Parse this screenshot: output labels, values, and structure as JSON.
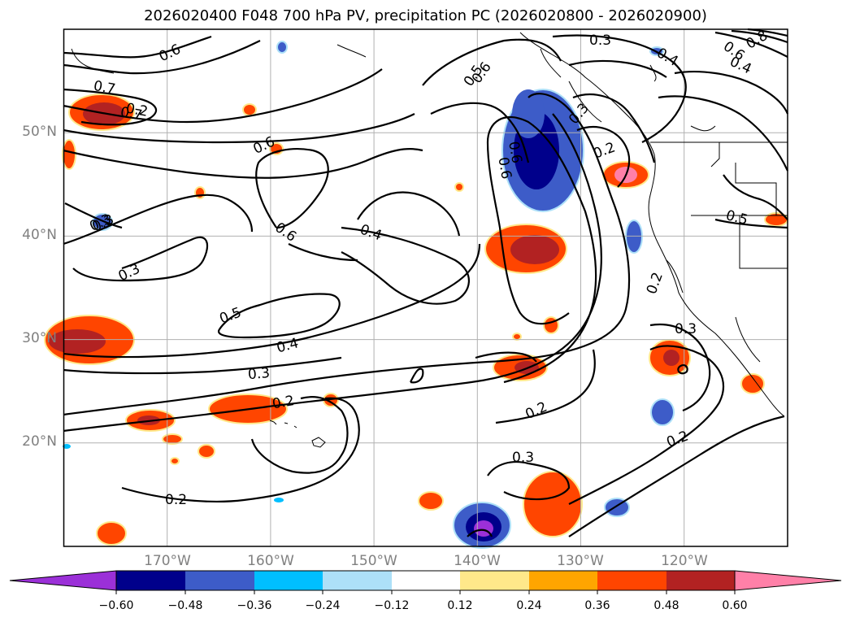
{
  "title": "2026020400 F048 700 hPa PV, precipitation PC (2026020800 - 2026020900)",
  "map": {
    "extent_lon": [
      -180,
      -110
    ],
    "extent_lat": [
      10,
      60
    ],
    "lat_labels": [
      "20°N",
      "30°N",
      "40°N",
      "50°N"
    ],
    "lon_labels": [
      "170°W",
      "160°W",
      "150°W",
      "140°W",
      "130°W",
      "120°W"
    ]
  },
  "colorbar": {
    "colors": [
      "#9b30d8",
      "#00008b",
      "#3d5cc8",
      "#00bfff",
      "#ade0f8",
      "#ffffff",
      "#ffe88a",
      "#ffa500",
      "#ff4500",
      "#b22222",
      "#ff80a8"
    ],
    "tick_labels": [
      "−0.60",
      "−0.48",
      "−0.36",
      "−0.24",
      "−0.12",
      "0.12",
      "0.24",
      "0.36",
      "0.48",
      "0.60"
    ]
  },
  "contour_labels": [
    "0.6",
    "0.7",
    "0.7",
    "0.6",
    "0.6",
    "0.3",
    "0.3",
    "0.5",
    "0.4",
    "0.3",
    "0.2",
    "0.4",
    "0.5",
    "0.3",
    "0.6",
    "0.3",
    "0.2",
    "0.3",
    "0.2",
    "0.4",
    "0.8",
    "0.6",
    "0.4",
    "0.5",
    "0.2",
    "0.3",
    "0.2",
    "0.2",
    "0.2",
    "0.3",
    "0.6",
    "0.6"
  ],
  "legend": {}
}
